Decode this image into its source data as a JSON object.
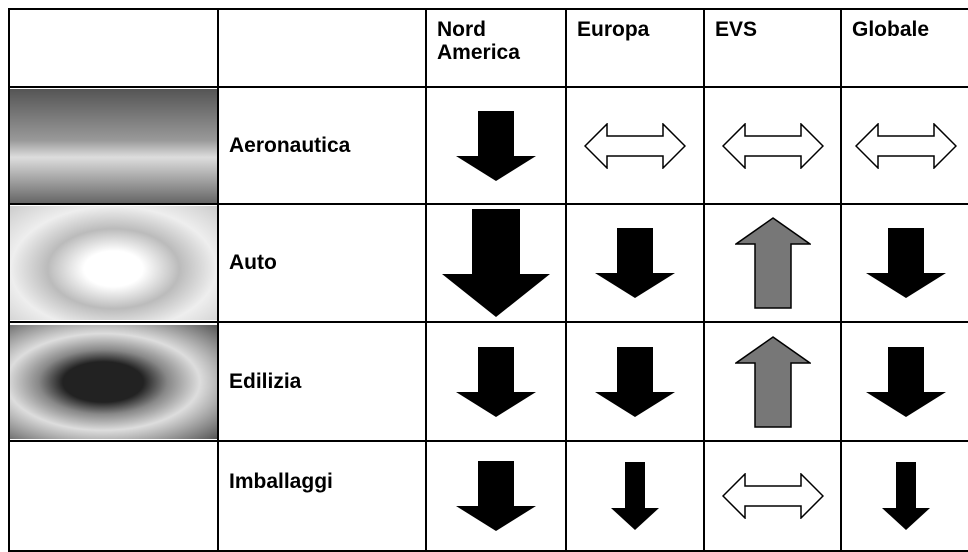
{
  "table": {
    "header": [
      "Nord America",
      "Europa",
      "EVS",
      "Globale"
    ],
    "rows": [
      "Aeronautica",
      "Auto",
      "Edilizia",
      "Imballaggi"
    ]
  }
}
